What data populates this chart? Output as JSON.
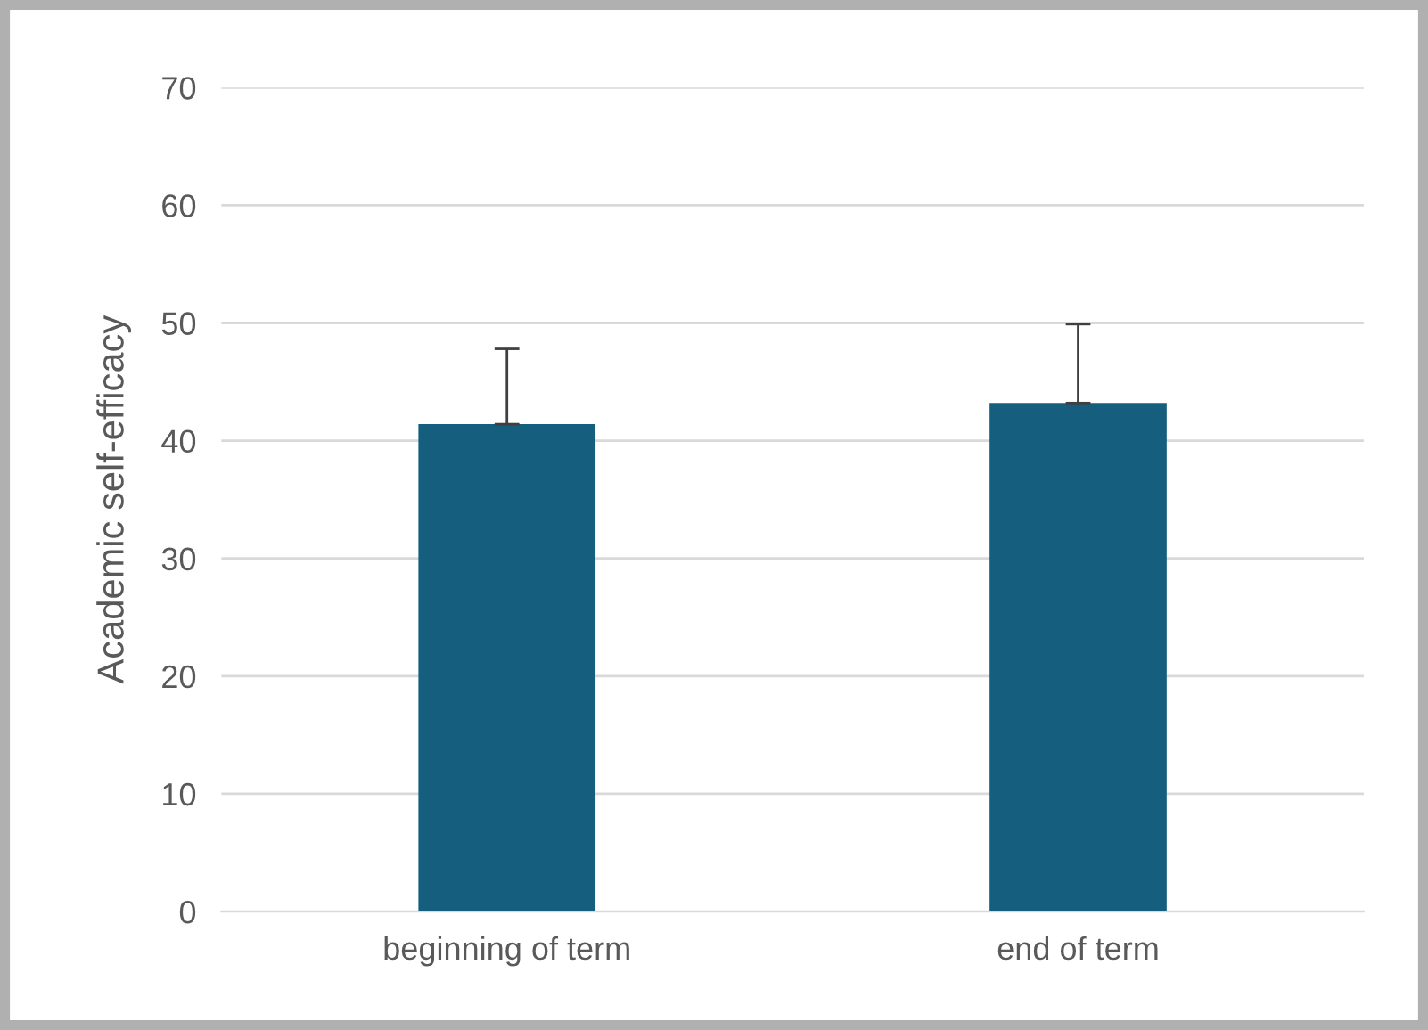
{
  "chart_data": {
    "type": "bar",
    "ylabel": "Academic self-efficacy",
    "categories": [
      "beginning of term",
      "end of term"
    ],
    "values": [
      41.4,
      43.2
    ],
    "errors": [
      [
        41.4,
        47.8
      ],
      [
        43.2,
        49.9
      ]
    ],
    "color": "#165e7e",
    "ylim": [
      0,
      70
    ],
    "yticks": [
      0,
      10,
      20,
      30,
      40,
      50,
      60,
      70
    ],
    "grid": "y",
    "legend": false
  }
}
